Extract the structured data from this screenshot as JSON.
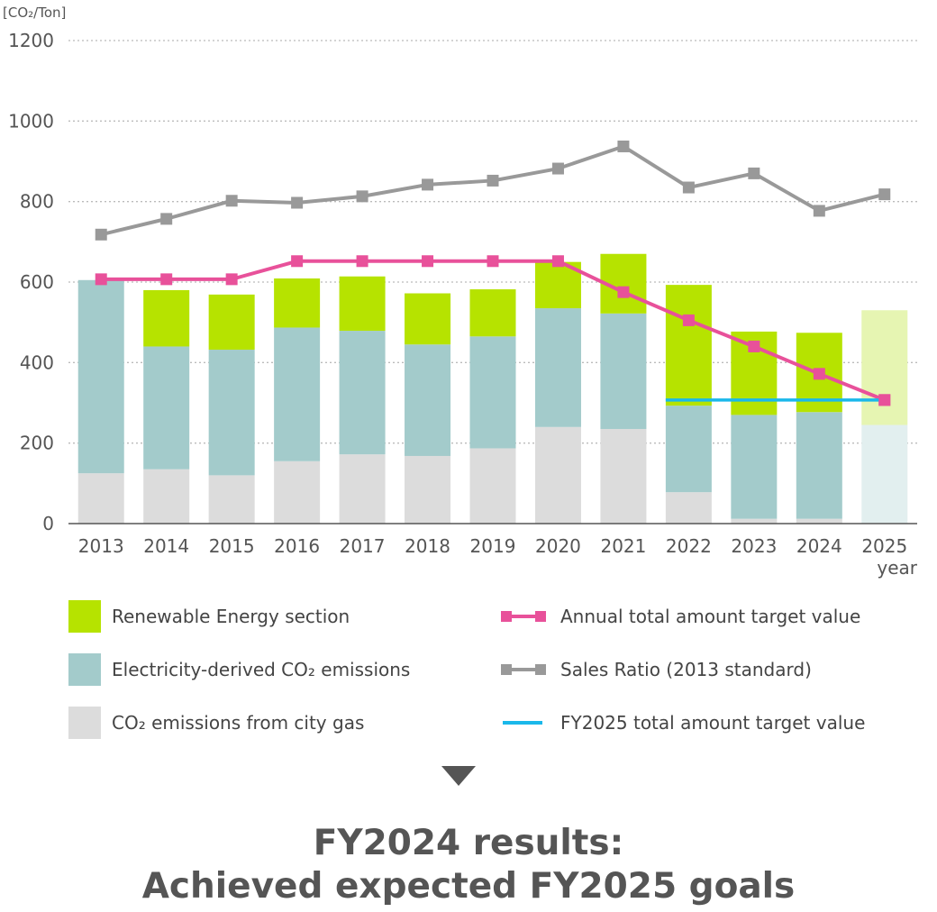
{
  "chart_data": {
    "type": "bar",
    "unit_label": "[CO₂/Ton]",
    "xlabel": "year",
    "categories": [
      "2013",
      "2014",
      "2015",
      "2016",
      "2017",
      "2018",
      "2019",
      "2020",
      "2021",
      "2022",
      "2023",
      "2024",
      "2025"
    ],
    "ylim": [
      0,
      1200
    ],
    "yticks": [
      0,
      200,
      400,
      600,
      800,
      1000,
      1200
    ],
    "grid": "horizontal-dotted",
    "stacked": true,
    "series": [
      {
        "name": "CO₂ emissions from city gas",
        "kind": "bar",
        "color": "#dcdcdc",
        "color_projected": "#e2efef",
        "values": [
          125,
          135,
          120,
          155,
          172,
          168,
          187,
          240,
          235,
          78,
          12,
          12,
          245
        ]
      },
      {
        "name": "Electricity-derived CO₂ emissions",
        "kind": "bar",
        "color": "#a3cbcb",
        "color_projected": "#e2efef",
        "values": [
          480,
          305,
          312,
          332,
          307,
          277,
          278,
          295,
          287,
          215,
          258,
          265,
          0
        ]
      },
      {
        "name": "Renewable Energy section",
        "kind": "bar",
        "color": "#b6e300",
        "color_projected": "#e6f5b2",
        "values": [
          0,
          140,
          137,
          122,
          135,
          127,
          117,
          115,
          148,
          300,
          207,
          197,
          285
        ]
      },
      {
        "name": "Annual total amount target value",
        "kind": "line",
        "color": "#e8519a",
        "values": [
          607,
          607,
          607,
          652,
          652,
          652,
          652,
          652,
          575,
          505,
          440,
          372,
          307
        ]
      },
      {
        "name": "Sales Ratio (2013 standard)",
        "kind": "line",
        "color": "#999999",
        "values": [
          718,
          757,
          802,
          797,
          813,
          842,
          852,
          882,
          937,
          835,
          870,
          777,
          818
        ]
      },
      {
        "name": "FY2025 total amount target value",
        "kind": "hline",
        "color": "#1ab8ea",
        "value": 307,
        "from": "2022",
        "to": "2025"
      }
    ],
    "projected_category": "2025"
  },
  "legend": {
    "renewable": "Renewable Energy section",
    "electricity": "Electricity-derived CO₂ emissions",
    "city_gas": "CO₂ emissions from city gas",
    "annual_target": "Annual total amount target value",
    "sales_ratio": "Sales Ratio (2013 standard)",
    "fy2025_target": "FY2025 total amount target value"
  },
  "result": {
    "line1": "FY2024 results:",
    "line2": "Achieved expected FY2025 goals"
  }
}
